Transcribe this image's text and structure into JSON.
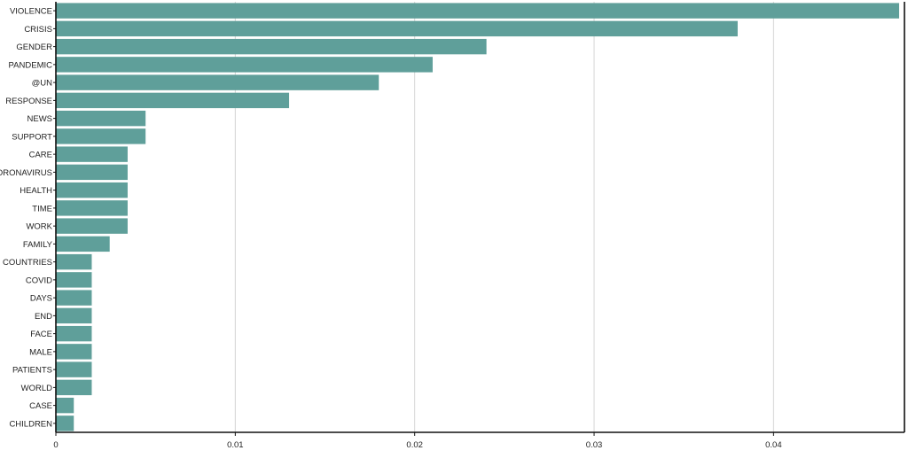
{
  "chart_data": {
    "type": "bar",
    "orientation": "horizontal",
    "title": "",
    "xlabel": "",
    "ylabel": "",
    "categories": [
      "VIOLENCE",
      "CRISIS",
      "GENDER",
      "PANDEMIC",
      "@UN",
      "RESPONSE",
      "NEWS",
      "SUPPORT",
      "CARE",
      "CORONAVIRUS",
      "HEALTH",
      "TIME",
      "WORK",
      "FAMILY",
      "COUNTRIES",
      "COVID",
      "DAYS",
      "END",
      "FACE",
      "MALE",
      "PATIENTS",
      "WORLD",
      "CASE",
      "CHILDREN"
    ],
    "values": [
      0.047,
      0.038,
      0.024,
      0.021,
      0.018,
      0.013,
      0.005,
      0.005,
      0.004,
      0.004,
      0.004,
      0.004,
      0.004,
      0.003,
      0.002,
      0.002,
      0.002,
      0.002,
      0.002,
      0.002,
      0.002,
      0.002,
      0.001,
      0.001
    ],
    "xlim": [
      0,
      0.047
    ],
    "xticks": [
      0,
      0.01,
      0.02,
      0.03,
      0.04
    ],
    "xtick_labels": [
      "0",
      "0.01",
      "0.02",
      "0.03",
      "0.04"
    ],
    "grid": "vertical",
    "legend": "none",
    "colors": {
      "bar": "#5f9f9a",
      "grid": "#d4d4d4",
      "axis": "#111111"
    }
  }
}
